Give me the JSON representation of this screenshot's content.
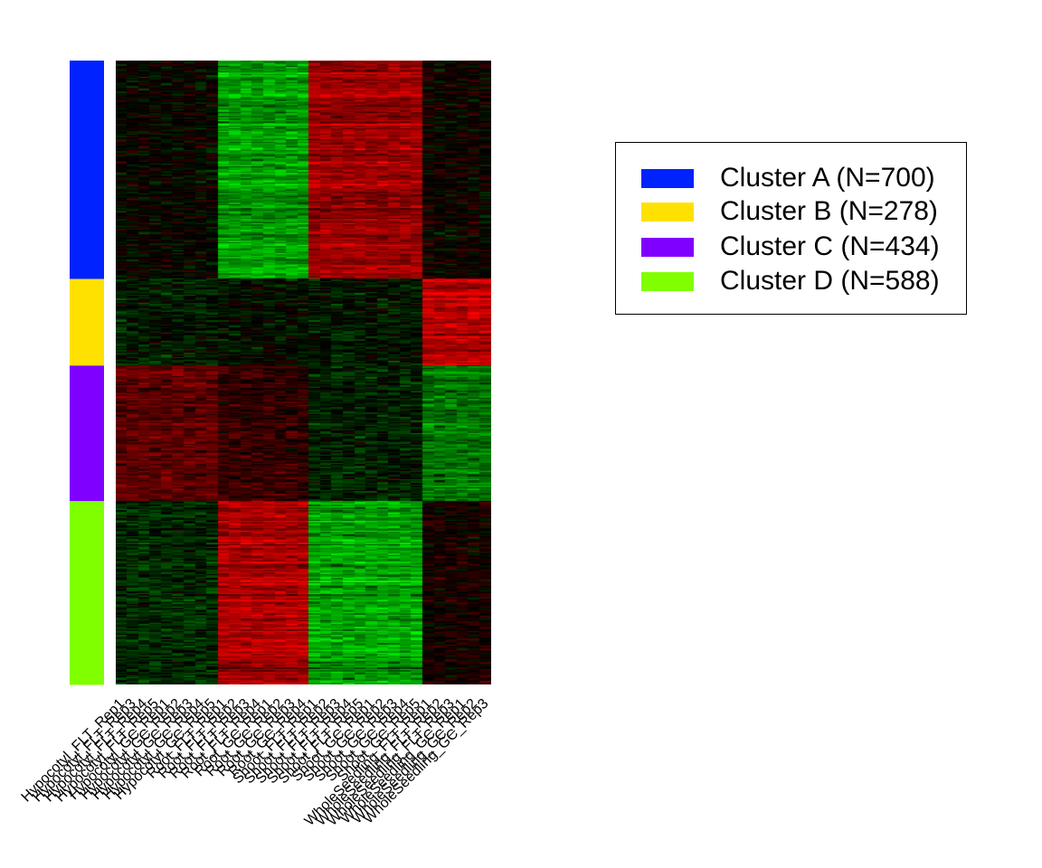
{
  "chart_data": {
    "type": "heatmap",
    "columns": [
      "Hypocotyl_FLT_Rep1",
      "Hypocotyl_FLT_Rep3",
      "Hypocotyl_FLT_Rep4",
      "Hypocotyl_FLT_Rep5",
      "Hypocotyl_GC_Rep1",
      "Hypocotyl_GC_Rep2",
      "Hypocotyl_GC_Rep3",
      "Hypocotyl_GC_Rep4",
      "Hypocotyl_GC_Rep5",
      "Root_FLT_Rep1",
      "Root_FLT_Rep2",
      "Root_FLT_Rep3",
      "Root_FLT_Rep4",
      "Root_GC_Rep1",
      "Root_GC_Rep2",
      "Root_GC_Rep3",
      "Root_GC_Rep4",
      "Shoot_FLT_Rep1",
      "Shoot_FLT_Rep2",
      "Shoot_FLT_Rep3",
      "Shoot_FLT_Rep4",
      "Shoot_FLT_Rep5",
      "Shoot_GC_Rep1",
      "Shoot_GC_Rep2",
      "Shoot_GC_Rep3",
      "Shoot_GC_Rep4",
      "Shoot_GC_Rep5",
      "WholeSeedling_FLT_Rep1",
      "WholeSeedling_FLT_Rep2",
      "WholeSeedling_FLT_Rep3",
      "WholeSeedling_GC_Rep1",
      "WholeSeedling_GC_Rep2",
      "WholeSeedling_GC_Rep3"
    ],
    "column_groups": [
      {
        "name": "Hypocotyl",
        "count": 9
      },
      {
        "name": "Root",
        "count": 8
      },
      {
        "name": "Shoot",
        "count": 10
      },
      {
        "name": "WholeSeedling",
        "count": 6
      }
    ],
    "clusters": [
      {
        "name": "Cluster A",
        "n": 700,
        "color": "#0022ff",
        "pattern": {
          "Hypocotyl": 0.0,
          "Root": -0.75,
          "Shoot": 0.75,
          "WholeSeedling": 0.05
        }
      },
      {
        "name": "Cluster B",
        "n": 278,
        "color": "#ffe100",
        "pattern": {
          "Hypocotyl": -0.12,
          "Root": -0.05,
          "Shoot": -0.1,
          "WholeSeedling": 0.9
        }
      },
      {
        "name": "Cluster C",
        "n": 434,
        "color": "#8000ff",
        "pattern": {
          "Hypocotyl": 0.45,
          "Root": 0.25,
          "Shoot": -0.15,
          "WholeSeedling": -0.55
        }
      },
      {
        "name": "Cluster D",
        "n": 588,
        "color": "#80ff00",
        "pattern": {
          "Hypocotyl": -0.2,
          "Root": 0.85,
          "Shoot": -0.8,
          "WholeSeedling": 0.1
        }
      }
    ],
    "color_scale": {
      "low": "#00ff00",
      "mid": "#000000",
      "high": "#ff0000"
    },
    "legend_position": "top-right"
  },
  "legend": {
    "items": [
      {
        "label": "Cluster A (N=700)",
        "color": "#0022ff"
      },
      {
        "label": "Cluster B (N=278)",
        "color": "#ffe100"
      },
      {
        "label": "Cluster C (N=434)",
        "color": "#8000ff"
      },
      {
        "label": "Cluster D (N=588)",
        "color": "#80ff00"
      }
    ]
  }
}
